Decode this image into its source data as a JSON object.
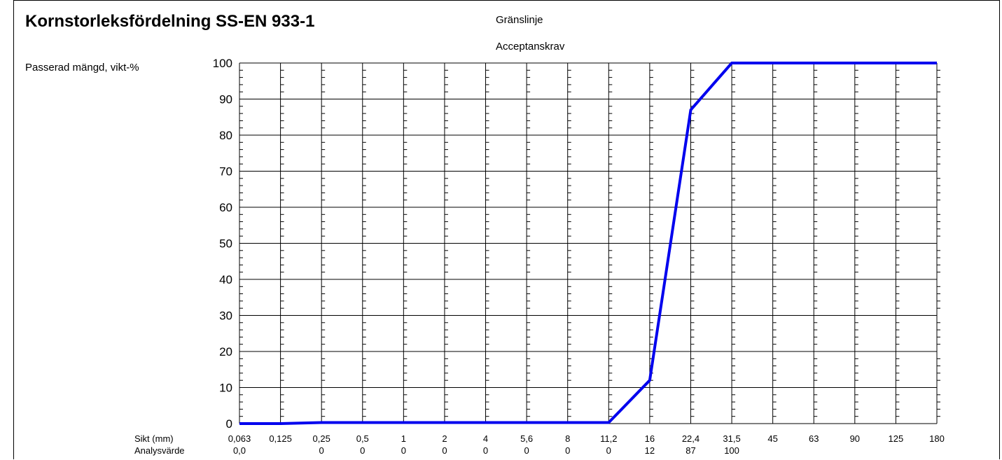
{
  "chart_data": {
    "type": "line",
    "title": "Kornstorleksfördelning SS-EN 933-1",
    "ylabel": "Passerad mängd, vikt-%",
    "legend": [
      "Gränslinje",
      "Acceptanskrav"
    ],
    "xlabel": "Sikt (mm)",
    "analysis_label": "Analysvärde",
    "x_ticks": [
      "0,063",
      "0,125",
      "0,25",
      "0,5",
      "1",
      "2",
      "4",
      "5,6",
      "8",
      "11,2",
      "16",
      "22,4",
      "31,5",
      "45",
      "63",
      "90",
      "125",
      "180"
    ],
    "x_values": [
      0.063,
      0.125,
      0.25,
      0.5,
      1,
      2,
      4,
      5.6,
      8,
      11.2,
      16,
      22.4,
      31.5,
      45,
      63,
      90,
      125,
      180
    ],
    "analysis_values": [
      "0,0",
      "",
      "0",
      "0",
      "0",
      "0",
      "0",
      "0",
      "0",
      "0",
      "12",
      "87",
      "100",
      "",
      "",
      "",
      "",
      ""
    ],
    "y_ticks": [
      "0",
      "10",
      "20",
      "30",
      "40",
      "50",
      "60",
      "70",
      "80",
      "90",
      "100"
    ],
    "ylim": [
      0,
      100
    ],
    "x_scale": "log",
    "grid": true,
    "series": [
      {
        "color": "#0000ee",
        "x": [
          0.063,
          0.125,
          0.25,
          0.5,
          1,
          2,
          4,
          5.6,
          8,
          11.2,
          16,
          22.4,
          31.5,
          45,
          63,
          90,
          125,
          180
        ],
        "y": [
          0,
          0,
          0.3,
          0.3,
          0.3,
          0.3,
          0.3,
          0.3,
          0.3,
          0.3,
          12,
          87,
          100,
          100,
          100,
          100,
          100,
          100
        ]
      }
    ]
  }
}
